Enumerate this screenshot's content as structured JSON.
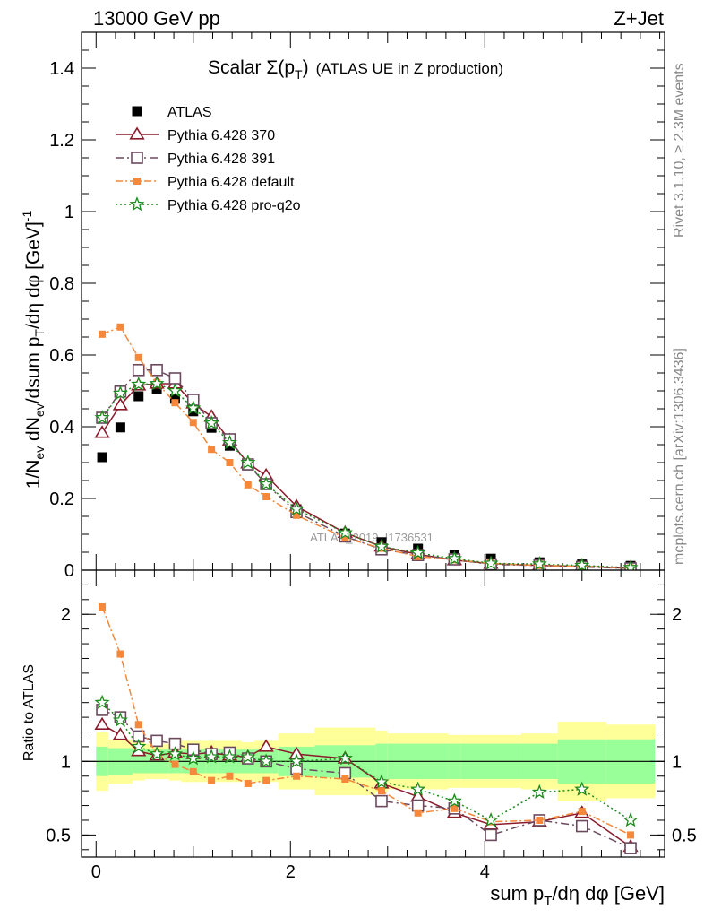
{
  "header": {
    "left": "13000 GeV pp",
    "right": "Z+Jet"
  },
  "side_labels": {
    "rivet": "Rivet 3.1.10, ≥ 2.3M events",
    "mcplots": "mcplots.cern.ch [arXiv:1306.3436]"
  },
  "colors": {
    "atlas": "#000000",
    "p370": "#8b1a2b",
    "p391": "#6b4a5e",
    "pdefault": "#f5883a",
    "pq2o": "#1a8a1a",
    "band_inner": "#99ff99",
    "band_outer": "#ffff99"
  },
  "chart_data": [
    {
      "type": "scatter",
      "title_main": "Scalar Σ(p",
      "title_sub": "T",
      "title_tail": ")",
      "title_paren": "(ATLAS UE in Z production)",
      "ylabel": "1/N_ev dN_ev/dsum p_T/dη dφ [GeV]^-1",
      "watermark": "ATLAS_2019_I1736531",
      "xlim": [
        -0.15,
        5.85
      ],
      "ylim": [
        0,
        1.5
      ],
      "y_ticks": [
        "0",
        "0.2",
        "0.4",
        "0.6",
        "0.8",
        "1",
        "1.2",
        "1.4"
      ],
      "x": [
        0.0625,
        0.25,
        0.4375,
        0.625,
        0.8125,
        1.0,
        1.1875,
        1.375,
        1.5625,
        1.75,
        2.0625,
        2.5625,
        2.9375,
        3.3125,
        3.6875,
        4.0625,
        4.5625,
        5.0,
        5.5
      ],
      "series": [
        {
          "name": "ATLAS",
          "values": [
            0.315,
            0.398,
            0.485,
            0.505,
            0.478,
            0.443,
            0.397,
            0.347,
            0.292,
            0.24,
            0.17,
            0.102,
            0.078,
            0.06,
            0.043,
            0.032,
            0.022,
            0.016,
            0.012
          ]
        },
        {
          "name": "Pythia 6.428 370",
          "values": [
            0.383,
            0.46,
            0.515,
            0.52,
            0.52,
            0.465,
            0.428,
            0.362,
            0.298,
            0.264,
            0.178,
            0.104,
            0.066,
            0.044,
            0.028,
            0.018,
            0.013,
            0.011,
            0.005
          ]
        },
        {
          "name": "Pythia 6.428 391",
          "values": [
            0.425,
            0.498,
            0.558,
            0.558,
            0.535,
            0.475,
            0.41,
            0.365,
            0.295,
            0.24,
            0.162,
            0.094,
            0.058,
            0.042,
            0.03,
            0.016,
            0.013,
            0.009,
            0.005
          ]
        },
        {
          "name": "Pythia 6.428 default",
          "values": [
            0.658,
            0.678,
            0.593,
            0.523,
            0.467,
            0.412,
            0.337,
            0.3,
            0.238,
            0.205,
            0.153,
            0.09,
            0.061,
            0.038,
            0.029,
            0.019,
            0.013,
            0.011,
            0.006
          ]
        },
        {
          "name": "Pythia 6.428 pro-q2o",
          "values": [
            0.425,
            0.493,
            0.518,
            0.52,
            0.5,
            0.452,
            0.41,
            0.355,
            0.3,
            0.24,
            0.17,
            0.104,
            0.066,
            0.048,
            0.032,
            0.019,
            0.017,
            0.013,
            0.007
          ]
        }
      ]
    },
    {
      "type": "scatter",
      "ylabel": "Ratio to ATLAS",
      "xlabel": "sum p_T/dη dφ [GeV]",
      "xlim": [
        -0.15,
        5.85
      ],
      "ylim": [
        0.35,
        2.3
      ],
      "y_ticks": [
        "0.5",
        "1",
        "2"
      ],
      "x_ticks": [
        "0",
        "2",
        "4"
      ],
      "x_edges": [
        0.0,
        0.125,
        0.375,
        0.5,
        0.75,
        0.875,
        1.125,
        1.25,
        1.5,
        1.625,
        1.875,
        2.25,
        2.875,
        3.0,
        3.625,
        3.75,
        4.375,
        4.75,
        5.25,
        5.75
      ],
      "band_inner": [
        0.1,
        0.09,
        0.08,
        0.08,
        0.08,
        0.08,
        0.08,
        0.08,
        0.08,
        0.08,
        0.1,
        0.11,
        0.12,
        0.12,
        0.12,
        0.12,
        0.12,
        0.15,
        0.15
      ],
      "band_outer": [
        0.2,
        0.15,
        0.13,
        0.12,
        0.13,
        0.14,
        0.14,
        0.14,
        0.13,
        0.14,
        0.19,
        0.23,
        0.21,
        0.19,
        0.18,
        0.18,
        0.19,
        0.27,
        0.25
      ],
      "series": [
        {
          "name": "Pythia 6.428 370",
          "values": [
            1.25,
            1.18,
            1.07,
            1.04,
            1.06,
            1.05,
            1.06,
            1.04,
            1.03,
            1.1,
            1.05,
            1.02,
            0.85,
            0.76,
            0.65,
            0.57,
            0.59,
            0.65,
            0.42
          ]
        },
        {
          "name": "Pythia 6.428 391",
          "values": [
            1.35,
            1.3,
            1.17,
            1.14,
            1.12,
            1.08,
            1.05,
            1.06,
            1.02,
            1.0,
            0.95,
            0.92,
            0.73,
            0.7,
            0.68,
            0.5,
            0.6,
            0.56,
            0.41
          ]
        },
        {
          "name": "Pythia 6.428 default",
          "values": [
            2.05,
            1.73,
            1.25,
            1.05,
            0.98,
            0.93,
            0.87,
            0.9,
            0.85,
            0.87,
            0.9,
            0.88,
            0.8,
            0.65,
            0.68,
            0.59,
            0.6,
            0.66,
            0.5
          ]
        },
        {
          "name": "Pythia 6.428 pro-q2o",
          "values": [
            1.4,
            1.28,
            1.1,
            1.05,
            1.05,
            1.02,
            1.03,
            1.03,
            1.03,
            1.0,
            1.0,
            1.02,
            0.86,
            0.81,
            0.73,
            0.6,
            0.79,
            0.81,
            0.6
          ]
        }
      ]
    }
  ]
}
